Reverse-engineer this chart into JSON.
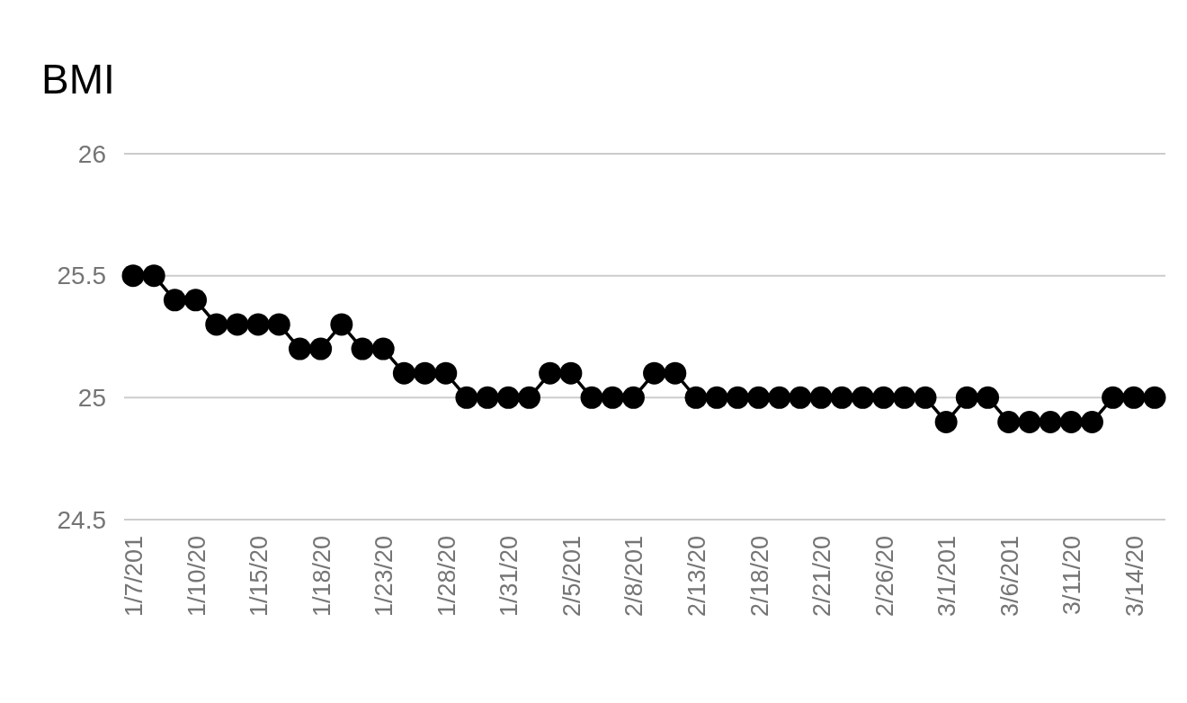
{
  "chart_data": {
    "type": "line",
    "title": "BMI",
    "categories": [
      "1/7/201",
      null,
      null,
      "1/10/20",
      null,
      null,
      "1/15/20",
      null,
      null,
      "1/18/20",
      null,
      null,
      "1/23/20",
      null,
      null,
      "1/28/20",
      null,
      null,
      "1/31/20",
      null,
      null,
      "2/5/201",
      null,
      null,
      "2/8/201",
      null,
      null,
      "2/13/20",
      null,
      null,
      "2/18/20",
      null,
      null,
      "2/21/20",
      null,
      null,
      "2/26/20",
      null,
      null,
      "3/1/201",
      null,
      null,
      "3/6/201",
      null,
      null,
      "3/11/20",
      null,
      null,
      "3/14/20",
      null
    ],
    "series": [
      {
        "color": "#000000",
        "values": [
          25.5,
          25.5,
          25.4,
          25.4,
          25.3,
          25.3,
          25.3,
          25.3,
          25.2,
          25.2,
          25.3,
          25.2,
          25.2,
          25.1,
          25.1,
          25.1,
          25,
          25,
          25,
          25,
          25.1,
          25.1,
          25,
          25,
          25,
          25.1,
          25.1,
          25,
          25,
          25,
          25,
          25,
          25,
          25,
          25,
          25,
          25,
          25,
          25,
          24.9,
          25,
          25,
          24.9,
          24.9,
          24.9,
          24.9,
          24.9,
          25,
          25,
          25
        ]
      }
    ],
    "ylim": [
      24.5,
      26
    ],
    "yticks": [
      24.5,
      25,
      25.5,
      26
    ],
    "grid": "y",
    "marker": "circle",
    "line_style": "solid"
  }
}
